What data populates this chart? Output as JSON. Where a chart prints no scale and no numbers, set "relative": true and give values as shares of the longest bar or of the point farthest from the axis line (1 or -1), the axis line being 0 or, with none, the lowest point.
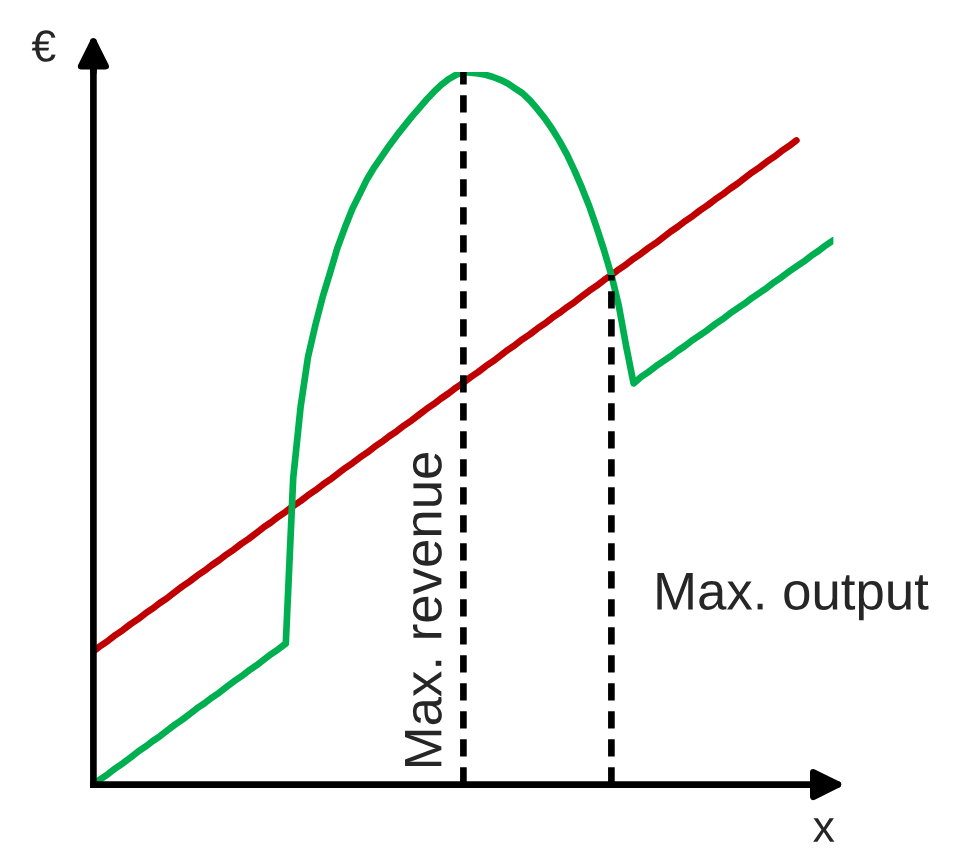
{
  "chart_data": {
    "type": "line",
    "relative": true,
    "xlabel": "x",
    "ylabel": "€",
    "categories": [
      null,
      null,
      null,
      null,
      null,
      null,
      null,
      null,
      null,
      null,
      null,
      null,
      null,
      null,
      null,
      null,
      null,
      null,
      null,
      null,
      null,
      null,
      null,
      null,
      null,
      null,
      null,
      null,
      null,
      null,
      null,
      null,
      null,
      null,
      null,
      null,
      null,
      null,
      null,
      null,
      null,
      null,
      null,
      null,
      null,
      null,
      null,
      null,
      null,
      null,
      null,
      null,
      null,
      null,
      null,
      null,
      null,
      null,
      null,
      null,
      null,
      null,
      null,
      null,
      null,
      null,
      null,
      null,
      null,
      null,
      null,
      null,
      null,
      null,
      null,
      null,
      null,
      null,
      null,
      null,
      null,
      null,
      null,
      null,
      null,
      null,
      null,
      null,
      null,
      null,
      null,
      null,
      null,
      null,
      null,
      null,
      null,
      null,
      null,
      null,
      null
    ],
    "series": [
      {
        "color": "#c00000",
        "values": [
          0.187,
          0.195,
          0.202,
          0.21,
          0.217,
          0.225,
          0.232,
          0.24,
          0.247,
          0.255,
          0.262,
          0.27,
          0.278,
          0.285,
          0.293,
          0.3,
          0.308,
          0.315,
          0.323,
          0.33,
          0.338,
          0.345,
          0.353,
          0.361,
          0.368,
          0.376,
          0.383,
          0.391,
          0.398,
          0.406,
          0.413,
          0.421,
          0.428,
          0.436,
          0.444,
          0.451,
          0.459,
          0.466,
          0.474,
          0.481,
          0.489,
          0.496,
          0.504,
          0.511,
          0.519,
          0.527,
          0.534,
          0.542,
          0.549,
          0.557,
          0.564,
          0.572,
          0.579,
          0.587,
          0.594,
          0.602,
          0.61,
          0.617,
          0.625,
          0.632,
          0.64,
          0.647,
          0.655,
          0.662,
          0.67,
          0.677,
          0.685,
          0.693,
          0.7,
          0.708,
          0.715,
          0.723,
          0.73,
          0.738,
          0.745,
          0.753,
          0.76,
          0.768,
          0.776,
          0.783,
          0.791,
          0.798,
          0.806,
          0.813,
          0.821,
          0.828,
          0.836,
          0.843,
          0.851,
          0.859,
          0.866,
          0.874,
          0.881,
          0.889,
          0.896,
          0.904,
          null,
          null,
          null,
          null,
          null
        ]
      },
      {
        "color": "#00b050",
        "values": [
          0,
          0.008,
          0.015,
          0.023,
          0.03,
          0.038,
          0.046,
          0.053,
          0.061,
          0.068,
          0.076,
          0.084,
          0.091,
          0.099,
          0.107,
          0.114,
          0.122,
          0.129,
          0.137,
          0.145,
          0.152,
          0.16,
          0.167,
          0.175,
          0.183,
          0.19,
          0.198,
          0.43,
          0.53,
          0.6,
          0.645,
          0.685,
          0.719,
          0.754,
          0.782,
          0.808,
          0.829,
          0.85,
          0.867,
          0.882,
          0.897,
          0.911,
          0.924,
          0.937,
          0.949,
          0.961,
          0.972,
          0.982,
          0.99,
          0.996,
          1.0,
          0.999,
          0.998,
          0.996,
          0.993,
          0.989,
          0.984,
          0.977,
          0.97,
          0.96,
          0.948,
          0.935,
          0.92,
          0.903,
          0.884,
          0.862,
          0.838,
          0.812,
          0.782,
          0.75,
          0.715,
          0.672,
          0.615,
          0.563,
          0.572,
          0.579,
          0.587,
          0.594,
          0.601,
          0.609,
          0.616,
          0.624,
          0.631,
          0.638,
          0.646,
          0.653,
          0.661,
          0.668,
          0.675,
          0.683,
          0.69,
          0.697,
          0.705,
          0.712,
          0.72,
          0.727,
          0.734,
          0.742,
          0.749,
          0.757,
          0.764
        ]
      }
    ],
    "annotations": [
      "Max. revenue",
      "Max. output"
    ]
  }
}
